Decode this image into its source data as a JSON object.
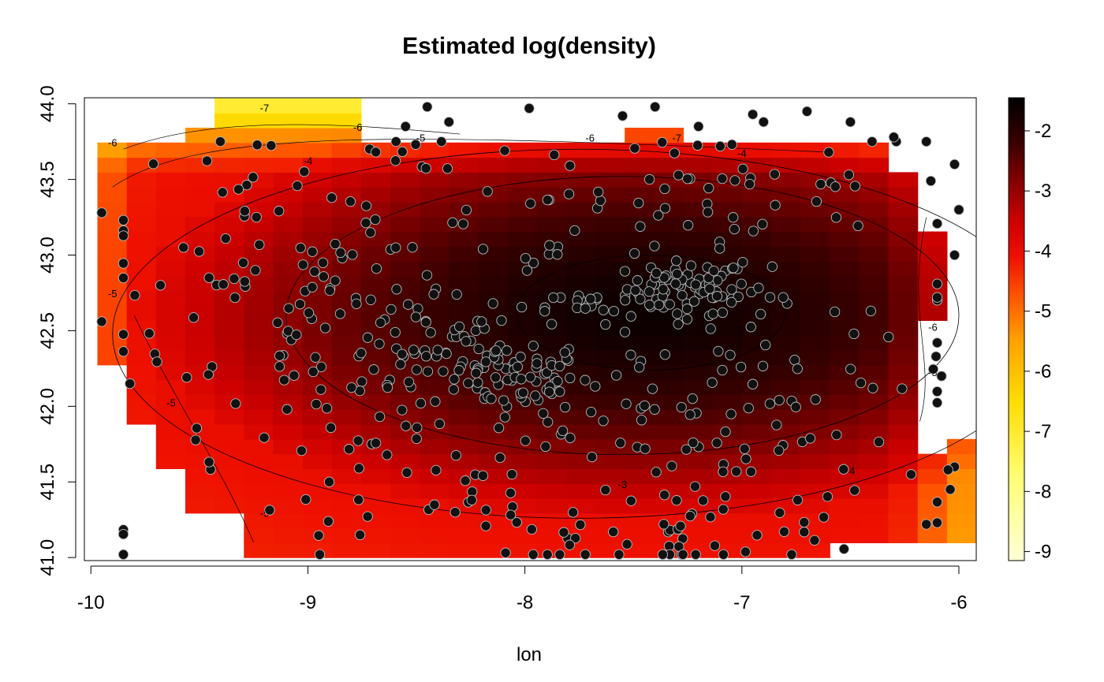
{
  "chart_data": {
    "type": "heatmap",
    "title": "Estimated log(density)",
    "xlabel": "lon",
    "ylabel": "",
    "xlim": [
      -10.03,
      -5.92
    ],
    "ylim": [
      40.98,
      44.04
    ],
    "x_ticks": [
      -10,
      -9,
      -8,
      -7,
      -6
    ],
    "x_tick_labels": [
      "-10",
      "-9",
      "-8",
      "-7",
      "-6"
    ],
    "y_ticks": [
      41.0,
      41.5,
      42.0,
      42.5,
      43.0,
      43.5,
      44.0
    ],
    "y_tick_labels": [
      "41.0",
      "41.5",
      "42.0",
      "42.5",
      "43.0",
      "43.5",
      "44.0"
    ],
    "colorbar": {
      "range": [
        -9.15,
        -1.45
      ],
      "ticks": [
        -2,
        -3,
        -4,
        -5,
        -6,
        -7,
        -8,
        -9
      ],
      "tick_labels": [
        "-2",
        "-3",
        "-4",
        "-5",
        "-6",
        "-7",
        "-8",
        "-9"
      ],
      "palette": "heat",
      "colors": [
        "#000000",
        "#3a0000",
        "#8b0000",
        "#cc0000",
        "#ee1000",
        "#ff5a00",
        "#ffa200",
        "#ffdd00",
        "#ffff7a",
        "#ffffd8"
      ],
      "color_stops": [
        -1.45,
        -2.2,
        -2.9,
        -3.5,
        -4.1,
        -4.8,
        -5.5,
        -6.5,
        -7.8,
        -9.15
      ]
    },
    "density_model": {
      "center": [
        -7.45,
        42.62
      ],
      "peak": -1.6,
      "scale_x": 0.95,
      "scale_y": 0.56,
      "exponent": 3.2,
      "floor": -3.9
    },
    "contours": [
      {
        "level": -2,
        "center": [
          -7.42,
          42.62
        ],
        "rx": 0.62,
        "ry": 0.38
      },
      {
        "level": -3,
        "center": [
          -7.55,
          42.6
        ],
        "rx": 1.55,
        "ry": 0.92
      },
      {
        "level": -4,
        "center": [
          -7.75,
          42.48
        ],
        "rx": 2.15,
        "ry": 1.22
      }
    ],
    "contour_labels": [
      {
        "text": "-6",
        "x": -9.9,
        "y": 43.72
      },
      {
        "text": "-7",
        "x": -9.2,
        "y": 43.95
      },
      {
        "text": "-6",
        "x": -8.77,
        "y": 43.82
      },
      {
        "text": "-5",
        "x": -8.48,
        "y": 43.75
      },
      {
        "text": "-4",
        "x": -9.0,
        "y": 43.6
      },
      {
        "text": "-6",
        "x": -7.7,
        "y": 43.75
      },
      {
        "text": "-7",
        "x": -7.3,
        "y": 43.75
      },
      {
        "text": "-4",
        "x": -7.0,
        "y": 43.65
      },
      {
        "text": "-5",
        "x": -9.9,
        "y": 42.72
      },
      {
        "text": "-5",
        "x": -9.63,
        "y": 42.0
      },
      {
        "text": "-5",
        "x": -9.2,
        "y": 41.27
      },
      {
        "text": "-3",
        "x": -7.55,
        "y": 41.46
      },
      {
        "text": "-4",
        "x": -6.5,
        "y": 41.55
      },
      {
        "text": "-5",
        "x": -6.12,
        "y": 42.2
      },
      {
        "text": "-6",
        "x": -6.12,
        "y": 42.5
      }
    ],
    "points_clusters": [
      {
        "center": [
          -7.25,
          42.78
        ],
        "spread": [
          0.14,
          0.09
        ],
        "count": 70
      },
      {
        "center": [
          -8.1,
          42.2
        ],
        "spread": [
          0.2,
          0.12
        ],
        "count": 70
      },
      {
        "center": [
          -9.0,
          42.7
        ],
        "spread": [
          0.5,
          0.4
        ],
        "count": 60
      },
      {
        "center": [
          -7.0,
          42.25
        ],
        "spread": [
          0.55,
          0.55
        ],
        "count": 110
      },
      {
        "center": [
          -8.5,
          42.35
        ],
        "spread": [
          0.3,
          0.2
        ],
        "count": 50
      },
      {
        "center": [
          -8.1,
          41.5
        ],
        "spread": [
          0.9,
          0.35
        ],
        "count": 90
      },
      {
        "center": [
          -7.3,
          41.15
        ],
        "spread": [
          0.5,
          0.12
        ],
        "count": 30
      },
      {
        "center": [
          -8.8,
          43.2
        ],
        "spread": [
          0.7,
          0.35
        ],
        "count": 70
      },
      {
        "center": [
          -7.3,
          43.4
        ],
        "spread": [
          0.5,
          0.2
        ],
        "count": 40
      },
      {
        "center": [
          -7.7,
          42.65
        ],
        "spread": [
          0.1,
          0.06
        ],
        "count": 18
      }
    ],
    "points_fixed": [
      [
        -9.95,
        43.28
      ],
      [
        -9.95,
        42.56
      ],
      [
        -9.82,
        42.15
      ],
      [
        -8.45,
        43.98
      ],
      [
        -7.98,
        43.97
      ],
      [
        -7.4,
        43.98
      ],
      [
        -7.55,
        43.92
      ],
      [
        -6.95,
        43.93
      ],
      [
        -6.7,
        43.95
      ],
      [
        -6.5,
        43.88
      ],
      [
        -6.4,
        43.75
      ],
      [
        -6.15,
        43.75
      ],
      [
        -6.02,
        43.6
      ],
      [
        -6.0,
        43.3
      ],
      [
        -6.02,
        43.0
      ],
      [
        -6.08,
        42.2
      ],
      [
        -6.02,
        41.6
      ],
      [
        -6.04,
        41.45
      ],
      [
        -6.22,
        41.55
      ],
      [
        -6.15,
        41.22
      ],
      [
        -8.55,
        43.85
      ],
      [
        -7.2,
        43.85
      ],
      [
        -6.9,
        43.88
      ],
      [
        -6.6,
        43.68
      ],
      [
        -8.35,
        43.88
      ],
      [
        -7.1,
        43.72
      ],
      [
        -6.3,
        43.78
      ],
      [
        -6.05,
        41.58
      ]
    ]
  }
}
